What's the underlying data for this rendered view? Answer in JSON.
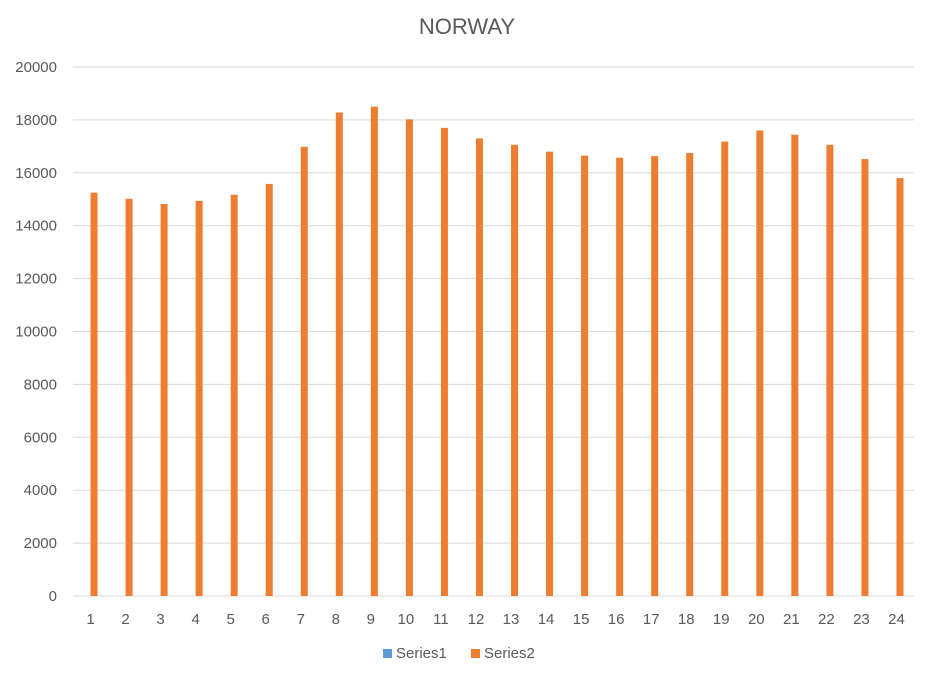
{
  "chart_data": {
    "type": "bar",
    "title": "NORWAY",
    "xlabel": "",
    "ylabel": "",
    "categories": [
      "1",
      "2",
      "3",
      "4",
      "5",
      "6",
      "7",
      "8",
      "9",
      "10",
      "11",
      "12",
      "13",
      "14",
      "15",
      "16",
      "17",
      "18",
      "19",
      "20",
      "21",
      "22",
      "23",
      "24"
    ],
    "series": [
      {
        "name": "Series1",
        "color": "#5b9bd5",
        "values": [
          0,
          0,
          0,
          0,
          0,
          0,
          0,
          0,
          0,
          0,
          0,
          0,
          0,
          0,
          0,
          0,
          0,
          0,
          0,
          0,
          0,
          0,
          0,
          0
        ]
      },
      {
        "name": "Series2",
        "color": "#ed7d31",
        "values": [
          15250,
          15020,
          14820,
          14940,
          15170,
          15580,
          16980,
          18280,
          18500,
          18020,
          17700,
          17300,
          17060,
          16800,
          16650,
          16570,
          16630,
          16750,
          17180,
          17600,
          17440,
          17060,
          16520,
          15800
        ]
      }
    ],
    "ylim": [
      0,
      20000
    ],
    "yticks": [
      0,
      2000,
      4000,
      6000,
      8000,
      10000,
      12000,
      14000,
      16000,
      18000,
      20000
    ],
    "grid": true,
    "legend_position": "bottom"
  }
}
